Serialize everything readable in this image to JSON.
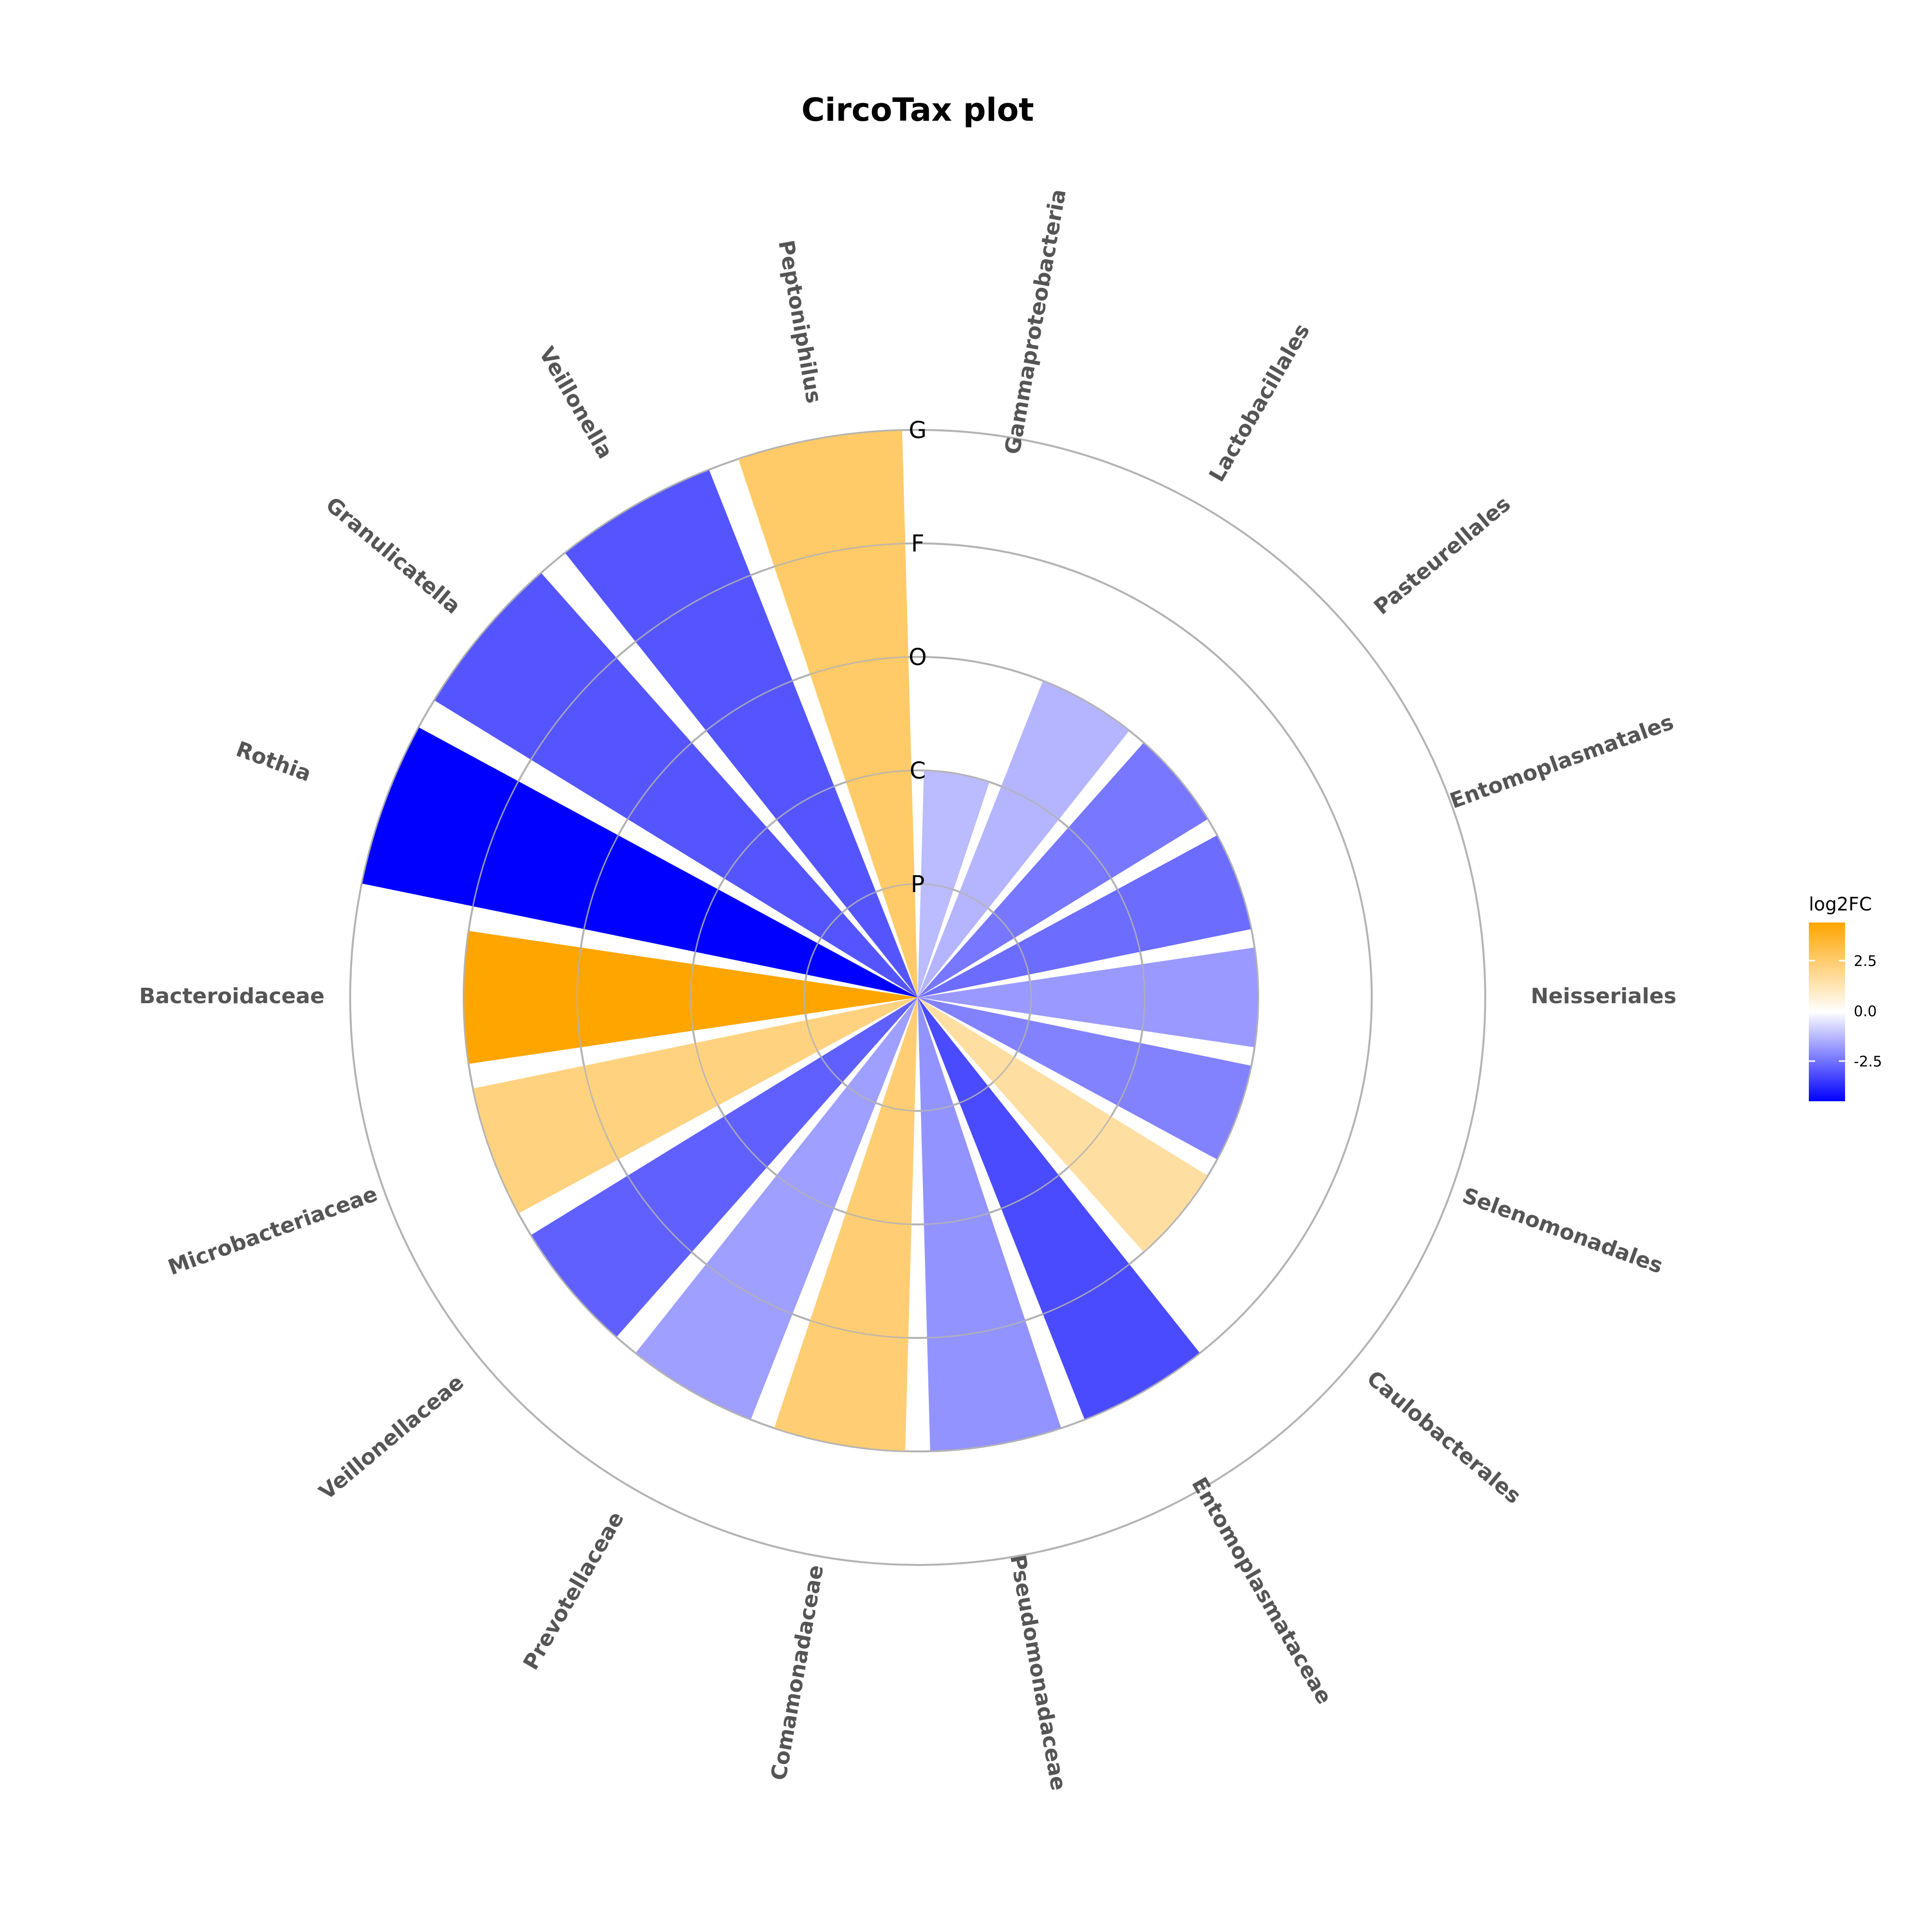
{
  "chart_data": {
    "type": "bar",
    "polar": true,
    "title": "CircoTax plot",
    "rank_levels": [
      "P",
      "C",
      "O",
      "F",
      "G"
    ],
    "categories": [
      "Gammaproteobacteria",
      "Lactobacillales",
      "Pasteurellales",
      "Entomoplasmatales",
      "Neisseriales",
      "Selenomonadales",
      "Caulobacterales",
      "Entomoplasmataceae",
      "Pseudomonadaceae",
      "Comamonadaceae",
      "Prevotellaceae",
      "Veillonellaceae",
      "Microbacteriaceae",
      "Bacteroidaceae",
      "Rothia",
      "Granulicatella",
      "Veillonella",
      "Peptoniphilus"
    ],
    "rank": [
      "C",
      "O",
      "O",
      "O",
      "O",
      "O",
      "O",
      "F",
      "F",
      "F",
      "F",
      "F",
      "F",
      "F",
      "G",
      "G",
      "G",
      "G"
    ],
    "log2FC": [
      -1.2,
      -1.3,
      -2.4,
      -2.6,
      -1.8,
      -2.2,
      1.6,
      -3.2,
      -1.9,
      2.4,
      -1.7,
      -2.8,
      2.2,
      4.4,
      -4.5,
      -3.0,
      -3.0,
      2.6
    ],
    "legend": {
      "title": "log2FC",
      "ticks": [
        2.5,
        0.0,
        -2.5
      ],
      "tick_labels": [
        "2.5",
        "0.0",
        "-2.5"
      ],
      "min": -4.5,
      "max": 4.4,
      "colors": {
        "high": "#ffa500",
        "mid": "#ffffff",
        "low": "#0000ff"
      }
    }
  }
}
